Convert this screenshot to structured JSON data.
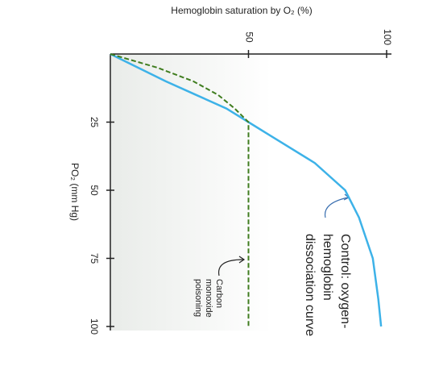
{
  "chart_data": {
    "type": "line",
    "title": "Hemoglobin saturation by O₂ (%)",
    "x_label": "PO₂ (mm Hg)",
    "x": [
      0,
      5,
      10,
      15,
      20,
      25,
      30,
      40,
      50,
      60,
      75,
      90,
      100
    ],
    "xlim": [
      0,
      100
    ],
    "xticks": [
      25,
      50,
      75,
      100
    ],
    "ylim": [
      0,
      100
    ],
    "yticks": [
      50,
      100
    ],
    "series": [
      {
        "label_lines": [
          "Control: oxygen-",
          "hemoglobin",
          "dissociation curve"
        ],
        "color": "#3db2e8",
        "dashed": false,
        "values": [
          0,
          10,
          20,
          31,
          42,
          50,
          58,
          74,
          85,
          90,
          95,
          97,
          98
        ]
      },
      {
        "label_lines": [
          "Carbon",
          "monoxide",
          "poisoning"
        ],
        "color": "#3f7d1f",
        "dashed": true,
        "values": [
          0,
          17,
          30,
          39,
          45,
          50,
          50,
          50,
          50,
          50,
          50,
          50,
          50
        ]
      }
    ]
  }
}
